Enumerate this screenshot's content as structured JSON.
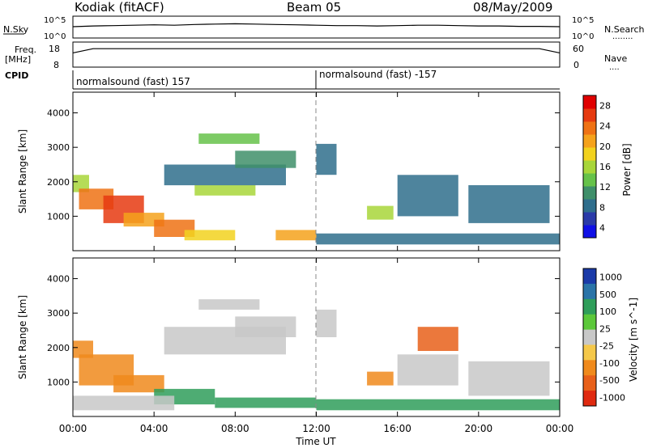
{
  "header": {
    "station": "Kodiak (fitACF)",
    "beam": "Beam 05",
    "date": "08/May/2009"
  },
  "panel_labels": {
    "nsky": "N.Sky",
    "nsearch": "N.Search",
    "nsearch_dots": "........",
    "freq": "Freq.",
    "freq_unit": "[MHz]",
    "nave": "Nave",
    "nave_dots": "....",
    "cpid": "CPID"
  },
  "cpid": {
    "left_text": "normalsound (fast) 157",
    "right_text": "normalsound (fast) -157"
  },
  "colors": {
    "power_scale": [
      "#1010e6",
      "#2a3aa8",
      "#2f6e8c",
      "#3f8f6a",
      "#66c24a",
      "#a8d63a",
      "#f2d21e",
      "#f5a21c",
      "#ef7214",
      "#e63a10",
      "#e00000"
    ],
    "velocity_scale": [
      "#1a3aa8",
      "#2a74a8",
      "#2f9e5a",
      "#5cc83a",
      "#c8c8c8",
      "#f5c84a",
      "#f08a1c",
      "#e8601a",
      "#e02a10"
    ]
  },
  "chart_data": [
    {
      "type": "line",
      "title": "N.Sky / N.Search",
      "y_tick_labels_left": [
        "10^5",
        "10^0"
      ],
      "y_tick_labels_right": [
        "10^5",
        "10^0"
      ],
      "series": [
        {
          "name": "N.Sky",
          "values": [
            2.6,
            2.8,
            2.9,
            3.0,
            3.1,
            3.0,
            3.2,
            3.3,
            3.4,
            3.3,
            3.2,
            3.1,
            3.0,
            2.9,
            2.9,
            2.8,
            2.9,
            3.0,
            3.0,
            2.9,
            2.8,
            2.8,
            2.7,
            2.7,
            2.6
          ]
        }
      ],
      "x": [
        0,
        1,
        2,
        3,
        4,
        5,
        6,
        7,
        8,
        9,
        10,
        11,
        12,
        13,
        14,
        15,
        16,
        17,
        18,
        19,
        20,
        21,
        22,
        23,
        24
      ]
    },
    {
      "type": "line",
      "title": "Freq / Nave",
      "y_tick_labels_left": [
        "18",
        "8"
      ],
      "y_tick_labels_right": [
        "60",
        "0"
      ],
      "series": [
        {
          "name": "Freq.",
          "values": [
            14,
            16,
            16,
            16,
            16,
            16,
            16,
            16,
            16,
            16,
            16,
            16,
            16,
            16,
            16,
            16,
            16,
            16,
            16,
            16,
            16,
            16,
            16,
            16,
            14
          ]
        }
      ],
      "x": [
        0,
        1,
        2,
        3,
        4,
        5,
        6,
        7,
        8,
        9,
        10,
        11,
        12,
        13,
        14,
        15,
        16,
        17,
        18,
        19,
        20,
        21,
        22,
        23,
        24
      ]
    },
    {
      "type": "heatmap",
      "title": "Power",
      "ylabel": "Slant Range [km]",
      "y_ticks": [
        "1000",
        "2000",
        "3000",
        "4000"
      ],
      "colorbar_label": "Power [dB]",
      "colorbar_ticks": [
        "4",
        "8",
        "12",
        "16",
        "20",
        "24",
        "28"
      ],
      "regions": [
        {
          "t0": 0.0,
          "t1": 0.8,
          "r0": 1700,
          "r1": 2200,
          "v": 14
        },
        {
          "t0": 0.3,
          "t1": 2.0,
          "r0": 1200,
          "r1": 1800,
          "v": 24
        },
        {
          "t0": 1.5,
          "t1": 3.5,
          "r0": 800,
          "r1": 1600,
          "v": 26
        },
        {
          "t0": 2.5,
          "t1": 4.5,
          "r0": 700,
          "r1": 1100,
          "v": 20
        },
        {
          "t0": 4.0,
          "t1": 6.0,
          "r0": 400,
          "r1": 900,
          "v": 22
        },
        {
          "t0": 5.5,
          "t1": 8.0,
          "r0": 300,
          "r1": 600,
          "v": 18
        },
        {
          "t0": 6.0,
          "t1": 9.0,
          "r0": 1600,
          "r1": 1900,
          "v": 14
        },
        {
          "t0": 4.5,
          "t1": 10.5,
          "r0": 1900,
          "r1": 2500,
          "v": 8
        },
        {
          "t0": 6.2,
          "t1": 9.2,
          "r0": 3100,
          "r1": 3400,
          "v": 12
        },
        {
          "t0": 8.0,
          "t1": 11.0,
          "r0": 2400,
          "r1": 2900,
          "v": 10
        },
        {
          "t0": 10.0,
          "t1": 12.0,
          "r0": 300,
          "r1": 600,
          "v": 20
        },
        {
          "t0": 12.0,
          "t1": 13.0,
          "r0": 2200,
          "r1": 3100,
          "v": 8
        },
        {
          "t0": 14.5,
          "t1": 15.8,
          "r0": 900,
          "r1": 1300,
          "v": 14
        },
        {
          "t0": 16.0,
          "t1": 19.0,
          "r0": 1000,
          "r1": 2200,
          "v": 6
        },
        {
          "t0": 19.5,
          "t1": 23.5,
          "r0": 800,
          "r1": 1900,
          "v": 6
        },
        {
          "t0": 12.0,
          "t1": 24.0,
          "r0": 180,
          "r1": 500,
          "v": 8
        }
      ]
    },
    {
      "type": "heatmap",
      "title": "Velocity",
      "ylabel": "Slant Range [km]",
      "y_ticks": [
        "1000",
        "2000",
        "3000",
        "4000"
      ],
      "xlabel": "Time UT",
      "x_ticks": [
        "00:00",
        "04:00",
        "08:00",
        "12:00",
        "16:00",
        "20:00",
        "00:00"
      ],
      "colorbar_label": "Velocity [m s^-1]",
      "colorbar_ticks": [
        "1000",
        "500",
        "100",
        "25",
        "-25",
        "-100",
        "-500",
        "-1000"
      ],
      "regions": [
        {
          "t0": 0.0,
          "t1": 1.0,
          "r0": 1700,
          "r1": 2200,
          "v": -300
        },
        {
          "t0": 0.3,
          "t1": 3.0,
          "r0": 900,
          "r1": 1800,
          "v": -200
        },
        {
          "t0": 2.0,
          "t1": 4.5,
          "r0": 700,
          "r1": 1200,
          "v": -150
        },
        {
          "t0": 4.5,
          "t1": 10.5,
          "r0": 1800,
          "r1": 2600,
          "v": 0
        },
        {
          "t0": 6.2,
          "t1": 9.2,
          "r0": 3100,
          "r1": 3400,
          "v": 0
        },
        {
          "t0": 8.0,
          "t1": 11.0,
          "r0": 2300,
          "r1": 2900,
          "v": 0
        },
        {
          "t0": 4.0,
          "t1": 7.0,
          "r0": 350,
          "r1": 800,
          "v": 80
        },
        {
          "t0": 0.0,
          "t1": 5.0,
          "r0": 180,
          "r1": 600,
          "v": 0
        },
        {
          "t0": 7.0,
          "t1": 12.0,
          "r0": 250,
          "r1": 550,
          "v": 70
        },
        {
          "t0": 12.0,
          "t1": 13.0,
          "r0": 2300,
          "r1": 3100,
          "v": 0
        },
        {
          "t0": 14.5,
          "t1": 15.8,
          "r0": 900,
          "r1": 1300,
          "v": -100
        },
        {
          "t0": 17.0,
          "t1": 19.0,
          "r0": 1900,
          "r1": 2600,
          "v": -500
        },
        {
          "t0": 16.0,
          "t1": 19.0,
          "r0": 900,
          "r1": 1800,
          "v": 0
        },
        {
          "t0": 19.5,
          "t1": 23.5,
          "r0": 600,
          "r1": 1600,
          "v": 0
        },
        {
          "t0": 12.0,
          "t1": 24.0,
          "r0": 180,
          "r1": 500,
          "v": 80
        }
      ]
    }
  ]
}
